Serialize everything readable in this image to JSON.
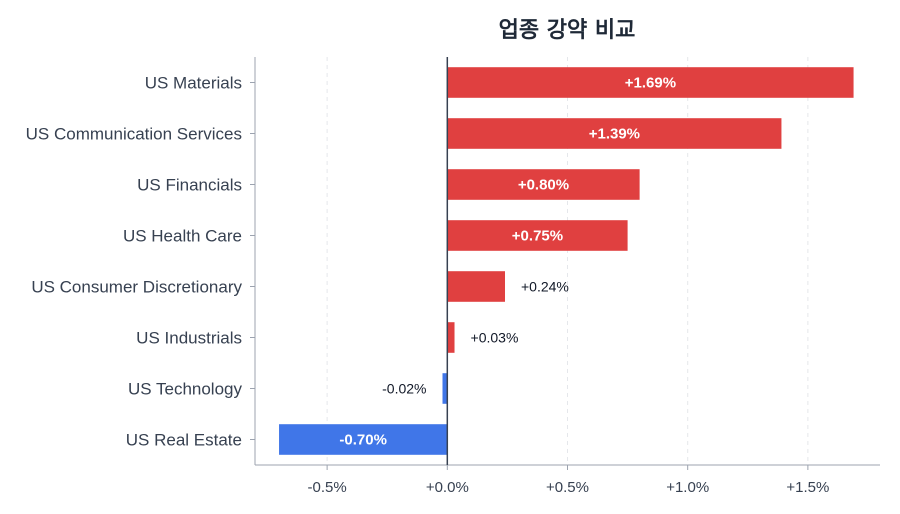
{
  "chart_data": {
    "type": "bar",
    "orientation": "horizontal",
    "title": "업종 강약 비교",
    "xlabel": "",
    "ylabel": "",
    "xlim": [
      -0.8,
      1.8
    ],
    "xticks": [
      -0.5,
      0.0,
      0.5,
      1.0,
      1.5
    ],
    "xtick_labels": [
      "-0.5%",
      "+0.0%",
      "+0.5%",
      "+1.0%",
      "+1.5%"
    ],
    "grid": true,
    "categories": [
      "US Materials",
      "US Communication Services",
      "US Financials",
      "US Health Care",
      "US Consumer Discretionary",
      "US Industrials",
      "US Technology",
      "US Real Estate"
    ],
    "values": [
      1.69,
      1.39,
      0.8,
      0.75,
      0.24,
      0.03,
      -0.02,
      -0.7
    ],
    "data_labels": [
      "+1.69%",
      "+1.39%",
      "+0.80%",
      "+0.75%",
      "+0.24%",
      "+0.03%",
      "-0.02%",
      "-0.70%"
    ],
    "colors": {
      "positive": "#e04040",
      "negative": "#4076e8"
    }
  }
}
